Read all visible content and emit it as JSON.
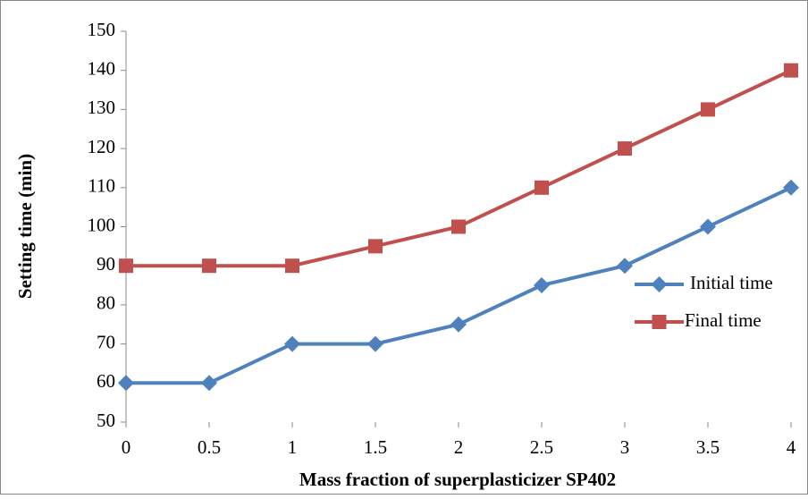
{
  "chart_data": {
    "type": "line",
    "x_label": "Mass fraction of superplasticizer SP402",
    "y_label": "Setting time (min)",
    "categories": [
      "0",
      "0.5",
      "1",
      "1.5",
      "2",
      "2.5",
      "3",
      "3.5",
      "4"
    ],
    "series": [
      {
        "name": "Initial time",
        "color": "#4f81bd",
        "marker": "diamond",
        "values": [
          60,
          60,
          70,
          70,
          75,
          85,
          90,
          100,
          110
        ]
      },
      {
        "name": "Final time",
        "color": "#c0504d",
        "marker": "square",
        "values": [
          90,
          90,
          90,
          95,
          100,
          110,
          120,
          130,
          140
        ]
      }
    ],
    "ylim": [
      50,
      150
    ],
    "yticks": [
      50,
      60,
      70,
      80,
      90,
      100,
      110,
      120,
      130,
      140,
      150
    ],
    "legend": "right"
  }
}
